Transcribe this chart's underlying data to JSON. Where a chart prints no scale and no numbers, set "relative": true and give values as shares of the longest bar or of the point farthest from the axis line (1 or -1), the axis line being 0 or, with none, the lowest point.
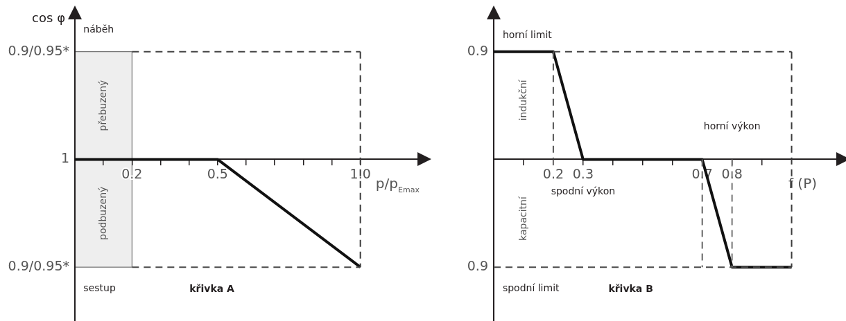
{
  "chart_data": [
    {
      "type": "line",
      "title": "křivka A",
      "xlabel": "p/p$_{Emax}$",
      "ylabel": "cos φ",
      "relative": true,
      "xlim": [
        0,
        1.2
      ],
      "xticks": [
        {
          "value": 0.1,
          "label": null
        },
        0.2,
        {
          "value": 0.3,
          "label": null
        },
        {
          "value": 0.4,
          "label": null
        },
        0.5,
        {
          "value": 0.6,
          "label": null
        },
        {
          "value": 0.7,
          "label": null
        },
        {
          "value": 0.8,
          "label": null
        },
        {
          "value": 0.9,
          "label": null
        },
        {
          "value": 1,
          "label": "1.0"
        }
      ],
      "grid": false,
      "marker": "none",
      "bands": [
        {
          "axis": "x",
          "from": 0,
          "to": 0.2,
          "color": "#eeeeee"
        }
      ],
      "annotations": [
        "0.9/0.95*",
        "1",
        "0.9/0.95*",
        "náběh",
        "přebuzený",
        "podbuzený",
        "sestup"
      ],
      "series": [
        {
          "x": [
            0,
            0.5,
            1
          ],
          "values": [
            0,
            0,
            -1
          ],
          "color": "#111111",
          "line_style": "solid"
        },
        {
          "x": [
            0.2,
            1
          ],
          "values": [
            1,
            1
          ],
          "color": "#444444",
          "line_style": "dashed"
        },
        {
          "x": [
            1,
            1
          ],
          "values": [
            1,
            -1
          ],
          "color": "#3c3c3c",
          "line_style": "dashed"
        },
        {
          "x": [
            0.2,
            1
          ],
          "values": [
            -1,
            -1
          ],
          "color": "#4a4a4a",
          "line_style": "dashed"
        }
      ]
    },
    {
      "type": "line",
      "title": "křivka B",
      "xlabel": "f (P)",
      "relative": true,
      "xlim": [
        0,
        1.15
      ],
      "xticks": [
        {
          "value": 0.1,
          "label": null
        },
        0.2,
        0.3,
        {
          "value": 0.4,
          "label": null
        },
        {
          "value": 0.5,
          "label": null
        },
        {
          "value": 0.6,
          "label": null
        },
        0.7,
        0.8,
        {
          "value": 0.9,
          "label": null
        }
      ],
      "grid": false,
      "marker": "none",
      "annotations": [
        "0.9",
        "0.9",
        "horní limit",
        "indukční",
        "horní výkon",
        "spodní výkon",
        "kapacitní",
        "spodní limit"
      ],
      "series": [
        {
          "x": [
            0,
            0.2,
            0.3,
            0.7,
            0.8,
            1
          ],
          "values": [
            1,
            1,
            0,
            0,
            -1,
            -1
          ],
          "color": "#111111",
          "line_style": "solid"
        },
        {
          "x": [
            0.2,
            1
          ],
          "values": [
            1,
            1
          ],
          "color": "#444444",
          "line_style": "dashed"
        },
        {
          "x": [
            1,
            1
          ],
          "values": [
            1,
            -1
          ],
          "color": "#3c3c3c",
          "line_style": "dashed"
        },
        {
          "x": [
            0,
            1
          ],
          "values": [
            -1,
            -1
          ],
          "color": "#4a4a4a",
          "line_style": "dashed"
        },
        {
          "x": [
            0.2,
            0.2
          ],
          "values": [
            1,
            0
          ],
          "color": "#555555",
          "line_style": "dashed"
        },
        {
          "x": [
            0.7,
            0.7
          ],
          "values": [
            0,
            -1
          ],
          "color": "#666666",
          "line_style": "dashed"
        },
        {
          "x": [
            0.8,
            0.8
          ],
          "values": [
            0,
            -1
          ],
          "color": "#777777",
          "line_style": "dashed"
        }
      ]
    }
  ]
}
